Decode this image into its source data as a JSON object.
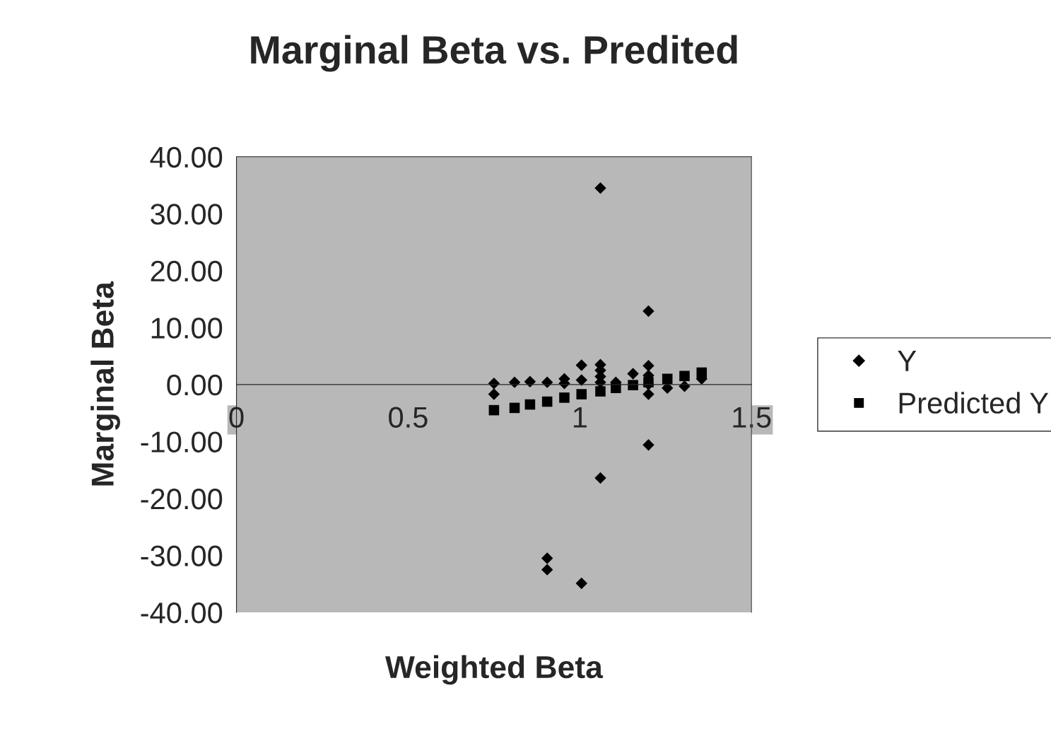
{
  "chart_data": {
    "type": "scatter",
    "title": "Marginal Beta vs. Predited",
    "xlabel": "Weighted Beta",
    "ylabel": "Marginal Beta",
    "xlim": [
      0,
      1.5
    ],
    "xticks": [
      0,
      0.5,
      1,
      1.5
    ],
    "ylim": [
      -40,
      40
    ],
    "yticks": [
      {
        "value": -40,
        "label": "-40.00"
      },
      {
        "value": -30,
        "label": "-30.00"
      },
      {
        "value": -20,
        "label": "-20.00"
      },
      {
        "value": -10,
        "label": "-10.00"
      },
      {
        "value": 0,
        "label": "0.00"
      },
      {
        "value": 10,
        "label": "10.00"
      },
      {
        "value": 20,
        "label": "20.00"
      },
      {
        "value": 30,
        "label": "30.00"
      },
      {
        "value": 40,
        "label": "40.00"
      }
    ],
    "grid": false,
    "legend": "right",
    "series": [
      {
        "name": "Y",
        "color": "#000000",
        "marker": "diamond",
        "x": [
          0.75,
          0.75,
          0.81,
          0.855,
          0.905,
          0.905,
          0.905,
          0.955,
          0.955,
          1.005,
          1.005,
          1.005,
          1.06,
          1.06,
          1.06,
          1.06,
          1.06,
          1.06,
          1.105,
          1.155,
          1.2,
          1.2,
          1.2,
          1.2,
          1.2,
          1.2,
          1.255,
          1.305,
          1.355
        ],
        "values": [
          0.2,
          -1.7,
          0.4,
          0.5,
          0.4,
          -30.5,
          -32.5,
          1.0,
          0.2,
          3.4,
          0.8,
          -34.9,
          34.5,
          3.5,
          2.5,
          1.4,
          0.4,
          -16.4,
          0.4,
          1.9,
          12.9,
          3.3,
          1.6,
          0.0,
          -1.7,
          -10.6,
          -0.6,
          -0.3,
          1.0
        ]
      },
      {
        "name": "Predicted Y",
        "color": "#000000",
        "marker": "square",
        "x": [
          0.75,
          0.81,
          0.855,
          0.905,
          0.955,
          1.005,
          1.06,
          1.105,
          1.155,
          1.2,
          1.255,
          1.305,
          1.355
        ],
        "values": [
          -4.5,
          -4.1,
          -3.5,
          -3.0,
          -2.3,
          -1.7,
          -1.2,
          -0.6,
          -0.1,
          0.4,
          1.0,
          1.5,
          2.1
        ]
      }
    ]
  }
}
